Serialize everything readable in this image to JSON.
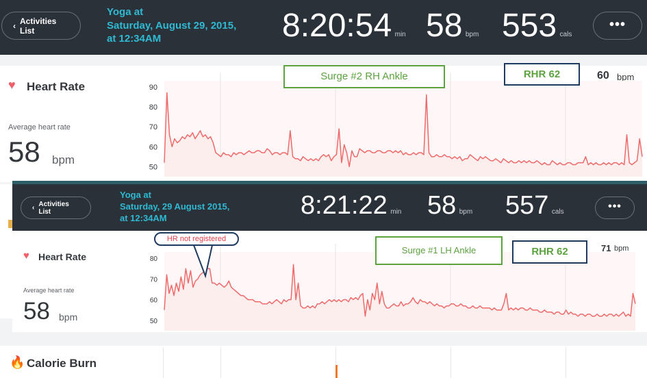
{
  "top": {
    "activities_label": "Activities List",
    "activity_title": "Yoga at",
    "activity_date": "Saturday, August 29, 2015,",
    "activity_time": "at 12:34AM",
    "duration": "8:20:54",
    "duration_unit": "min",
    "heart_rate": "58",
    "heart_rate_unit": "bpm",
    "calories": "553",
    "calories_unit": "cals",
    "more_label": "•••",
    "card": {
      "title": "Heart Rate",
      "avg_label": "Average heart rate",
      "avg_value": "58",
      "avg_unit": "bpm",
      "current_value": "60",
      "current_unit": "bpm",
      "y_ticks": [
        "90",
        "80",
        "70",
        "60",
        "50"
      ],
      "annotation_surge": "Surge #2 RH Ankle",
      "annotation_rhr": "RHR 62"
    }
  },
  "bottom": {
    "activities_label": "Activities List",
    "activity_title": "Yoga at",
    "activity_date": "Saturday, 29 August 2015,",
    "activity_time": "at 12:34AM",
    "duration": "8:21:22",
    "duration_unit": "min",
    "heart_rate": "58",
    "heart_rate_unit": "bpm",
    "calories": "557",
    "calories_unit": "cals",
    "more_label": "•••",
    "card": {
      "title": "Heart Rate",
      "avg_label": "Average heart rate",
      "avg_value": "58",
      "avg_unit": "bpm",
      "current_value": "71",
      "current_unit": "bpm",
      "y_ticks": [
        "80",
        "70",
        "60",
        "50"
      ],
      "annotation_surge": "Surge #1 LH Ankle",
      "annotation_rhr": "RHR 62",
      "annotation_callout": "HR not registered"
    }
  },
  "calorie": {
    "title": "Calorie Burn"
  },
  "colors": {
    "topbar": "#2b3139",
    "accent_title": "#2fb9d2",
    "heart": "#f0606a",
    "line": "#ee6a6a",
    "fill": "#fdeeee",
    "annotation_green": "#5ca23f",
    "annotation_navy": "#1e3a5f",
    "flame": "#f07a2a"
  },
  "chart_data": [
    {
      "type": "line",
      "title": "Heart Rate",
      "ylim": [
        45,
        93
      ],
      "y_ticks": [
        90,
        80,
        70,
        60,
        50
      ],
      "series": [
        {
          "values": [
            52,
            87,
            66,
            60,
            64,
            62,
            63,
            65,
            64,
            66,
            65,
            67,
            64,
            66,
            68,
            65,
            66,
            64,
            65,
            62,
            57,
            56,
            55,
            57,
            56,
            56,
            55,
            57,
            56,
            57,
            57,
            56,
            57,
            58,
            57,
            57,
            58,
            58,
            57,
            57,
            59,
            58,
            56,
            57,
            57,
            56,
            57,
            57,
            56,
            68,
            55,
            54,
            54,
            53,
            55,
            54,
            53,
            54,
            53,
            54,
            53,
            55,
            56,
            55,
            56,
            53,
            55,
            56,
            69,
            52,
            61,
            57,
            50,
            58,
            55,
            55,
            59,
            58,
            57,
            58,
            58,
            57,
            57,
            58,
            58,
            57,
            57,
            58,
            58,
            57,
            58,
            57,
            58,
            56,
            57,
            56,
            56,
            57,
            56,
            57,
            57,
            56,
            86,
            57,
            55,
            55,
            56,
            55,
            55,
            56,
            55,
            55,
            54,
            55,
            54,
            55,
            53,
            54,
            54,
            56,
            55,
            54,
            53,
            55,
            54,
            55,
            54,
            53,
            53,
            54,
            53,
            52,
            54,
            53,
            52,
            53,
            52,
            52,
            53,
            52,
            53,
            52,
            53,
            52,
            52,
            53,
            52,
            51,
            52,
            51,
            51,
            53,
            52,
            51,
            52,
            51,
            51,
            52,
            52,
            51,
            51,
            52,
            52,
            52,
            55,
            51,
            52,
            51,
            52,
            51,
            51,
            52,
            51,
            52,
            51,
            52,
            52,
            51,
            52,
            51,
            66,
            52,
            51,
            52,
            53,
            64,
            55
          ]
        }
      ]
    },
    {
      "type": "line",
      "title": "Heart Rate",
      "ylim": [
        45,
        83
      ],
      "y_ticks": [
        80,
        70,
        60,
        50
      ],
      "series": [
        {
          "values": [
            55,
            72,
            63,
            67,
            62,
            68,
            64,
            71,
            65,
            75,
            68,
            74,
            66,
            69,
            70,
            72,
            73,
            74,
            75,
            75,
            68,
            68,
            67,
            68,
            67,
            66,
            67,
            69,
            66,
            65,
            64,
            63,
            62,
            62,
            61,
            60,
            60,
            60,
            59,
            59,
            59,
            58,
            58,
            58,
            59,
            58,
            59,
            60,
            59,
            58,
            60,
            59,
            60,
            60,
            77,
            60,
            68,
            57,
            56,
            56,
            57,
            56,
            57,
            56,
            58,
            58,
            59,
            58,
            59,
            60,
            59,
            60,
            59,
            60,
            59,
            60,
            60,
            59,
            61,
            60,
            61,
            60,
            62,
            63,
            52,
            60,
            55,
            63,
            60,
            68,
            58,
            64,
            58,
            56,
            56,
            57,
            58,
            57,
            57,
            59,
            57,
            58,
            58,
            59,
            61,
            59,
            58,
            60,
            59,
            59,
            58,
            59,
            58,
            57,
            58,
            57,
            57,
            56,
            57,
            57,
            58,
            58,
            57,
            57,
            58,
            57,
            57,
            56,
            56,
            57,
            56,
            56,
            57,
            56,
            56,
            56,
            56,
            55,
            56,
            55,
            55,
            55,
            58,
            63,
            55,
            56,
            55,
            56,
            55,
            56,
            56,
            55,
            55,
            56,
            55,
            55,
            55,
            54,
            54,
            55,
            54,
            54,
            54,
            53,
            54,
            54,
            53,
            53,
            55,
            53,
            54,
            53,
            53,
            52,
            53,
            53,
            52,
            53,
            53,
            52,
            52,
            53,
            52,
            52,
            53,
            52,
            53,
            53,
            52,
            53,
            52,
            53,
            54,
            52,
            53,
            52,
            63,
            58
          ]
        }
      ]
    }
  ]
}
